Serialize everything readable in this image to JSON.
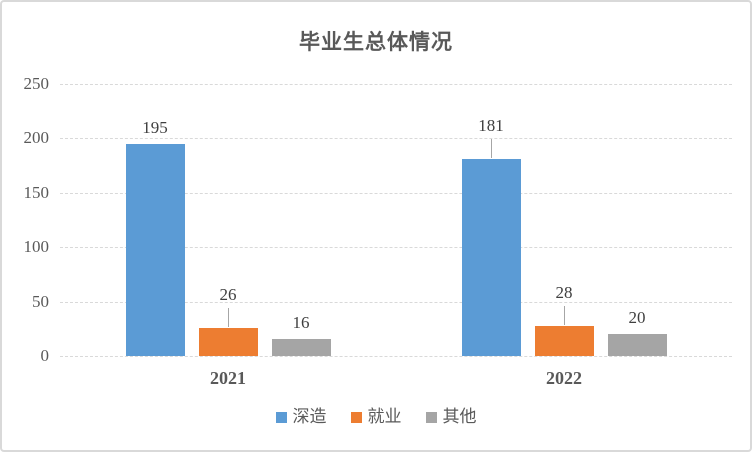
{
  "title": "毕业生总体情况",
  "chart_data": {
    "type": "bar",
    "title": "毕业生总体情况",
    "categories": [
      "2021",
      "2022"
    ],
    "series": [
      {
        "name": "深造",
        "color": "#5B9BD5",
        "values": [
          195,
          181
        ],
        "label_leader_line": [
          false,
          true
        ]
      },
      {
        "name": "就业",
        "color": "#ED7D31",
        "values": [
          26,
          28
        ],
        "label_leader_line": [
          true,
          true
        ]
      },
      {
        "name": "其他",
        "color": "#A5A5A5",
        "values": [
          16,
          20
        ],
        "label_leader_line": [
          false,
          false
        ]
      }
    ],
    "ylim": [
      0,
      250
    ],
    "yticks": [
      0,
      50,
      100,
      150,
      200,
      250
    ],
    "xlabel": "",
    "ylabel": "",
    "grid": "horizontal-dashed",
    "legend_position": "bottom",
    "data_labels_shown": true
  },
  "legend": {
    "items": [
      {
        "label": "深造",
        "color": "#5B9BD5"
      },
      {
        "label": "就业",
        "color": "#ED7D31"
      },
      {
        "label": "其他",
        "color": "#A5A5A5"
      }
    ]
  },
  "colors": {
    "grid": "#d9d9d9",
    "axis_text": "#595959",
    "value_label_text": "#3f3f3f",
    "leader_line": "#a6a6a6",
    "frame_border": "#d9d9d9",
    "background": "#ffffff"
  }
}
